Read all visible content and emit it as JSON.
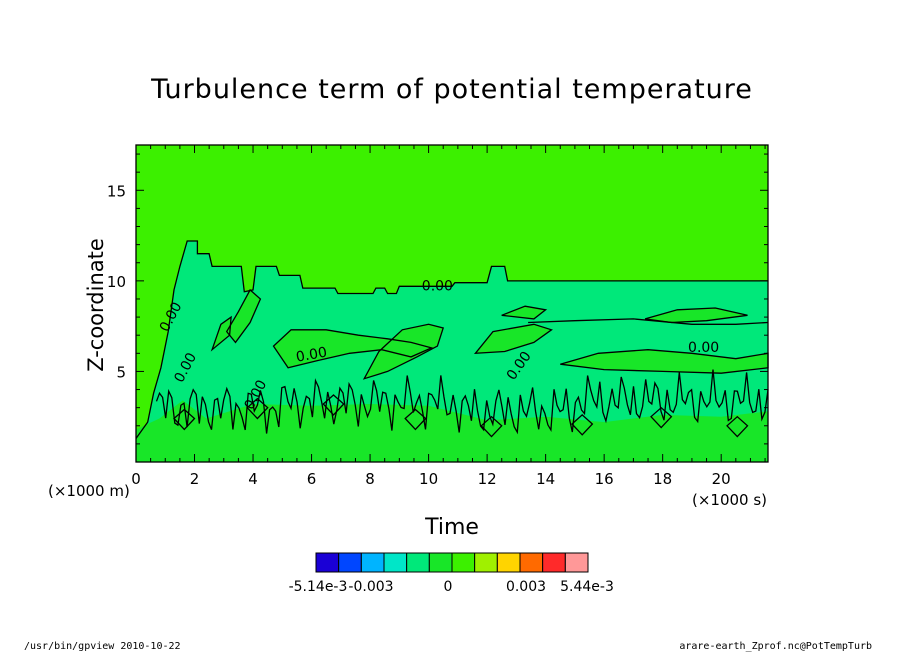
{
  "chart_data": {
    "type": "heatmap",
    "title": "Turbulence term of potential temperature",
    "xlabel": "Time",
    "ylabel": "Z-coordinate",
    "x_unit": "(×1000 s)",
    "y_unit": "(×1000 m)",
    "xlim": [
      0,
      21.6
    ],
    "ylim": [
      0,
      17.5
    ],
    "x_ticks": [
      0,
      2,
      4,
      6,
      8,
      10,
      12,
      14,
      16,
      18,
      20
    ],
    "y_ticks": [
      5,
      10,
      15
    ],
    "contour_label": "0.00",
    "colorbar": {
      "colors": [
        "#1a00d6",
        "#0046ff",
        "#00b4ff",
        "#00e6c8",
        "#00e87a",
        "#18e628",
        "#3cf000",
        "#a0f000",
        "#ffd400",
        "#ff6a00",
        "#ff2a2a",
        "#ff9898"
      ],
      "labels": [
        "-5.14e-3",
        "-0.003",
        "0",
        "0.003",
        "5.44e-3"
      ]
    }
  },
  "footer": {
    "left": "/usr/bin/gpview   2010-10-22",
    "right": "arare-earth_Zprof.nc@PotTempTurb"
  }
}
